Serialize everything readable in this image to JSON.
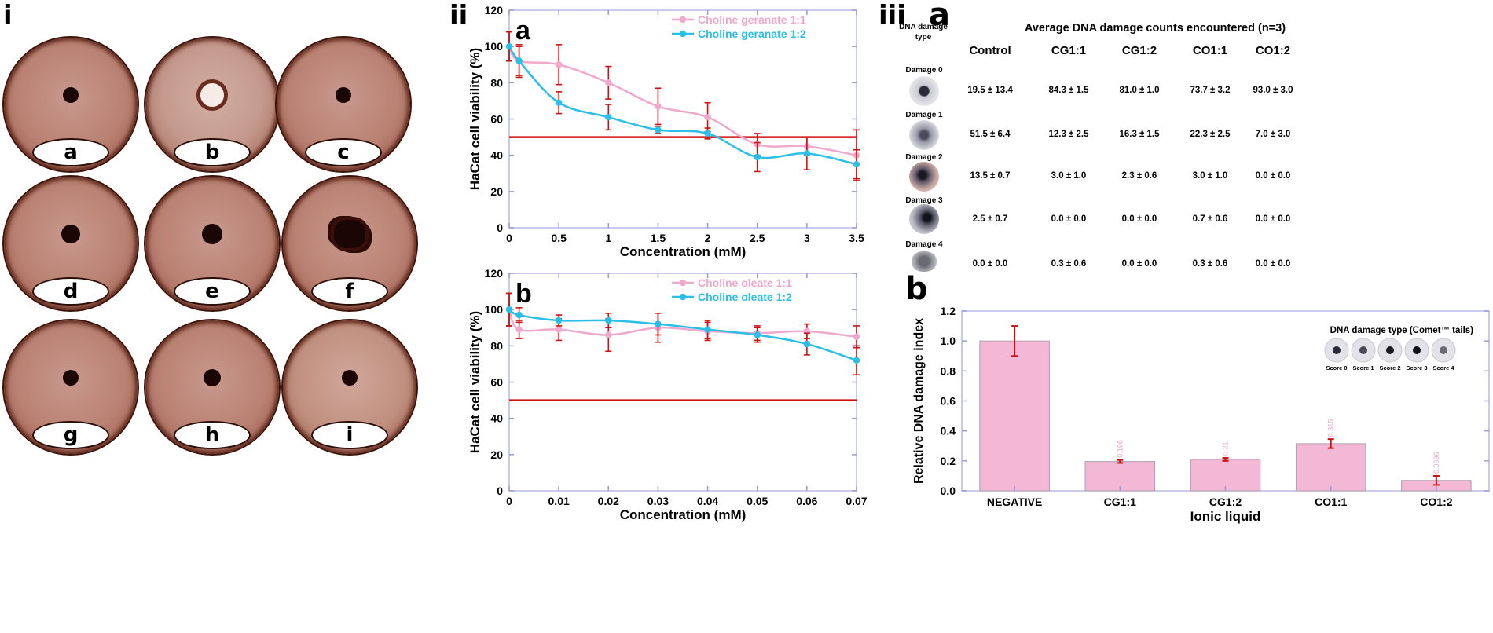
{
  "panels": {
    "i": "i",
    "ii": "ii",
    "iii": "iii",
    "a": "a",
    "b": "b"
  },
  "dishes": [
    {
      "label": "a"
    },
    {
      "label": "b"
    },
    {
      "label": "c"
    },
    {
      "label": "d"
    },
    {
      "label": "e"
    },
    {
      "label": "f"
    },
    {
      "label": "g"
    },
    {
      "label": "h"
    },
    {
      "label": "i"
    }
  ],
  "colors": {
    "pink": "#f0a8cc",
    "cyan": "#2bbfe8",
    "red": "#cc1111",
    "bar": "#f2b8d6",
    "dish": "#b98172"
  },
  "chart_data": [
    {
      "type": "line",
      "title": "a",
      "xlabel": "Concentration (mM)",
      "ylabel": "HaCat cell viability (%)",
      "xlim": [
        0,
        3.5
      ],
      "ylim": [
        0,
        120
      ],
      "xticks": [
        "0",
        "0.5",
        "1",
        "1.5",
        "2",
        "2.5",
        "3",
        "3.5"
      ],
      "yticks": [
        "0",
        "20",
        "40",
        "60",
        "80",
        "100",
        "120"
      ],
      "threshold": 50,
      "series": [
        {
          "name": "Choline geranate 1:1",
          "color": "#f0a8cc",
          "x": [
            0,
            0.1,
            0.5,
            1,
            1.5,
            2,
            2.5,
            3,
            3.5
          ],
          "y": [
            100,
            92,
            90,
            80,
            67,
            61,
            46,
            45,
            40
          ],
          "err": [
            8,
            8,
            11,
            9,
            10,
            8,
            6,
            5,
            14
          ]
        },
        {
          "name": "Choline geranate 1:2",
          "color": "#2bbfe8",
          "x": [
            0,
            0.1,
            0.5,
            1,
            1.5,
            2,
            2.5,
            3,
            3.5
          ],
          "y": [
            100,
            92,
            69,
            61,
            54,
            52,
            39,
            41,
            35
          ],
          "err": [
            8,
            9,
            6,
            7,
            2,
            3,
            8,
            9,
            8
          ]
        }
      ]
    },
    {
      "type": "line",
      "title": "b",
      "xlabel": "Concentration (mM)",
      "ylabel": "HaCat cell viability (%)",
      "xlim": [
        0,
        0.07
      ],
      "ylim": [
        0,
        120
      ],
      "xticks": [
        "0",
        "0.01",
        "0.02",
        "0.03",
        "0.04",
        "0.05",
        "0.06",
        "0.07"
      ],
      "yticks": [
        "0",
        "20",
        "40",
        "60",
        "80",
        "100",
        "120"
      ],
      "threshold": 50,
      "series": [
        {
          "name": "Choline oleate 1:1",
          "color": "#f0a8cc",
          "x": [
            0,
            0.002,
            0.01,
            0.02,
            0.03,
            0.04,
            0.05,
            0.06,
            0.07
          ],
          "y": [
            100,
            89,
            89,
            86,
            90,
            88,
            87,
            88,
            85
          ],
          "err": [
            9,
            5,
            6,
            9,
            8,
            5,
            4,
            4,
            6
          ]
        },
        {
          "name": "Choline oleate 1:2",
          "color": "#2bbfe8",
          "x": [
            0,
            0.002,
            0.01,
            0.02,
            0.03,
            0.04,
            0.05,
            0.06,
            0.07
          ],
          "y": [
            100,
            97,
            94,
            94,
            92,
            89,
            86,
            81,
            72
          ],
          "err": [
            9,
            4,
            3,
            4,
            6,
            5,
            4,
            6,
            8
          ]
        }
      ]
    },
    {
      "type": "bar",
      "title": "b",
      "xlabel": "Ionic liquid",
      "ylabel": "Relative DNA damage index",
      "ylim": [
        0,
        1.2
      ],
      "yticks": [
        "0.0",
        "0.2",
        "0.4",
        "0.6",
        "0.8",
        "1.0",
        "1.2"
      ],
      "categories": [
        "NEGATIVE",
        "CG1:1",
        "CG1:2",
        "CO1:1",
        "CO1:2"
      ],
      "values": [
        1.0,
        0.196,
        0.21,
        0.315,
        0.0696
      ],
      "err": [
        0.1,
        0.01,
        0.01,
        0.03,
        0.03
      ],
      "data_labels": [
        "",
        "0.196",
        "0.21",
        "0.315",
        "0.0696"
      ],
      "inset_title": "DNA damage type (Comet™ tails)",
      "inset_scores": [
        "Score 0",
        "Score 1",
        "Score 2",
        "Score 3",
        "Score 4"
      ]
    }
  ],
  "table": {
    "title": "Average DNA damage counts encountered (n=3)",
    "type_header": "DNA damage type",
    "columns": [
      "Control",
      "CG1:1",
      "CG1:2",
      "CO1:1",
      "CO1:2"
    ],
    "rows": [
      {
        "label": "Damage 0",
        "values": [
          "19.5 ± 13.4",
          "84.3 ± 1.5",
          "81.0 ± 1.0",
          "73.7 ± 3.2",
          "93.0 ± 3.0"
        ]
      },
      {
        "label": "Damage 1",
        "values": [
          "51.5 ± 6.4",
          "12.3 ± 2.5",
          "16.3 ± 1.5",
          "22.3 ± 2.5",
          "7.0 ± 3.0"
        ]
      },
      {
        "label": "Damage 2",
        "values": [
          "13.5 ± 0.7",
          "3.0 ± 1.0",
          "2.3 ± 0.6",
          "3.0 ± 1.0",
          "0.0 ± 0.0"
        ]
      },
      {
        "label": "Damage 3",
        "values": [
          "2.5 ± 0.7",
          "0.0 ± 0.0",
          "0.0 ± 0.0",
          "0.7 ± 0.6",
          "0.0 ± 0.0"
        ]
      },
      {
        "label": "Damage 4",
        "values": [
          "0.0 ± 0.0",
          "0.3 ± 0.6",
          "0.0 ± 0.0",
          "0.3 ± 0.6",
          "0.0 ± 0.0"
        ]
      }
    ]
  }
}
